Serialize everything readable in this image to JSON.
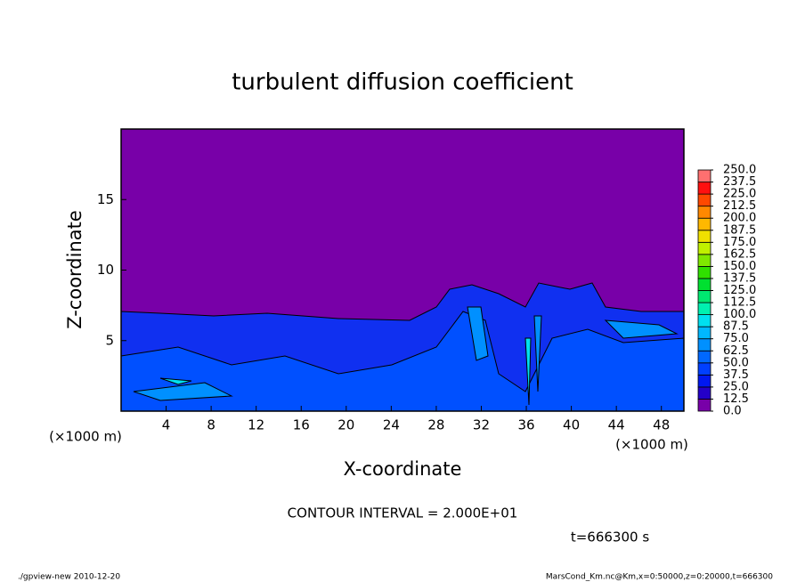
{
  "chart_data": {
    "type": "contour",
    "title": "turbulent diffusion coefficient",
    "xlabel": "X-coordinate",
    "ylabel": "Z-coordinate",
    "x_unit_labels": [
      "(×1000 m)",
      "(×1000 m)"
    ],
    "xlim": [
      0,
      50
    ],
    "xticks": [
      4,
      8,
      12,
      16,
      20,
      24,
      28,
      32,
      36,
      40,
      44,
      48
    ],
    "ylim": [
      0,
      20
    ],
    "yticks": [
      5,
      10,
      15
    ],
    "colorbar": {
      "lim": [
        0,
        250
      ],
      "ticks": [
        {
          "value": 0,
          "label": "0.0"
        },
        12.5,
        {
          "value": 25,
          "label": "25.0"
        },
        37.5,
        {
          "value": 50,
          "label": "50.0"
        },
        62.5,
        {
          "value": 75,
          "label": "75.0"
        },
        87.5,
        {
          "value": 100,
          "label": "100.0"
        },
        112.5,
        {
          "value": 125,
          "label": "125.0"
        },
        137.5,
        {
          "value": 150,
          "label": "150.0"
        },
        162.5,
        {
          "value": 175,
          "label": "175.0"
        },
        187.5,
        {
          "value": 200,
          "label": "200.0"
        },
        212.5,
        {
          "value": 225,
          "label": "225.0"
        },
        237.5,
        {
          "value": 250,
          "label": "250.0"
        }
      ],
      "colors": [
        "#7800a8",
        "#2400c8",
        "#0018f0",
        "#0040ff",
        "#0068ff",
        "#0090ff",
        "#00b8ff",
        "#00e0f0",
        "#00f0b0",
        "#00e870",
        "#00e030",
        "#30e000",
        "#80e800",
        "#c0f000",
        "#f0e000",
        "#ffb800",
        "#ff8800",
        "#ff4800",
        "#ff1010",
        "#ff7070"
      ]
    },
    "annotation": "CONTOUR INTERVAL = 2.000E+01",
    "time_label": "t=666300 s",
    "footer_left": "./gpview-new   2010-12-20",
    "footer_right": "MarsCond_Km.nc@Km,x=0:50000,z=0:20000,t=666300"
  }
}
